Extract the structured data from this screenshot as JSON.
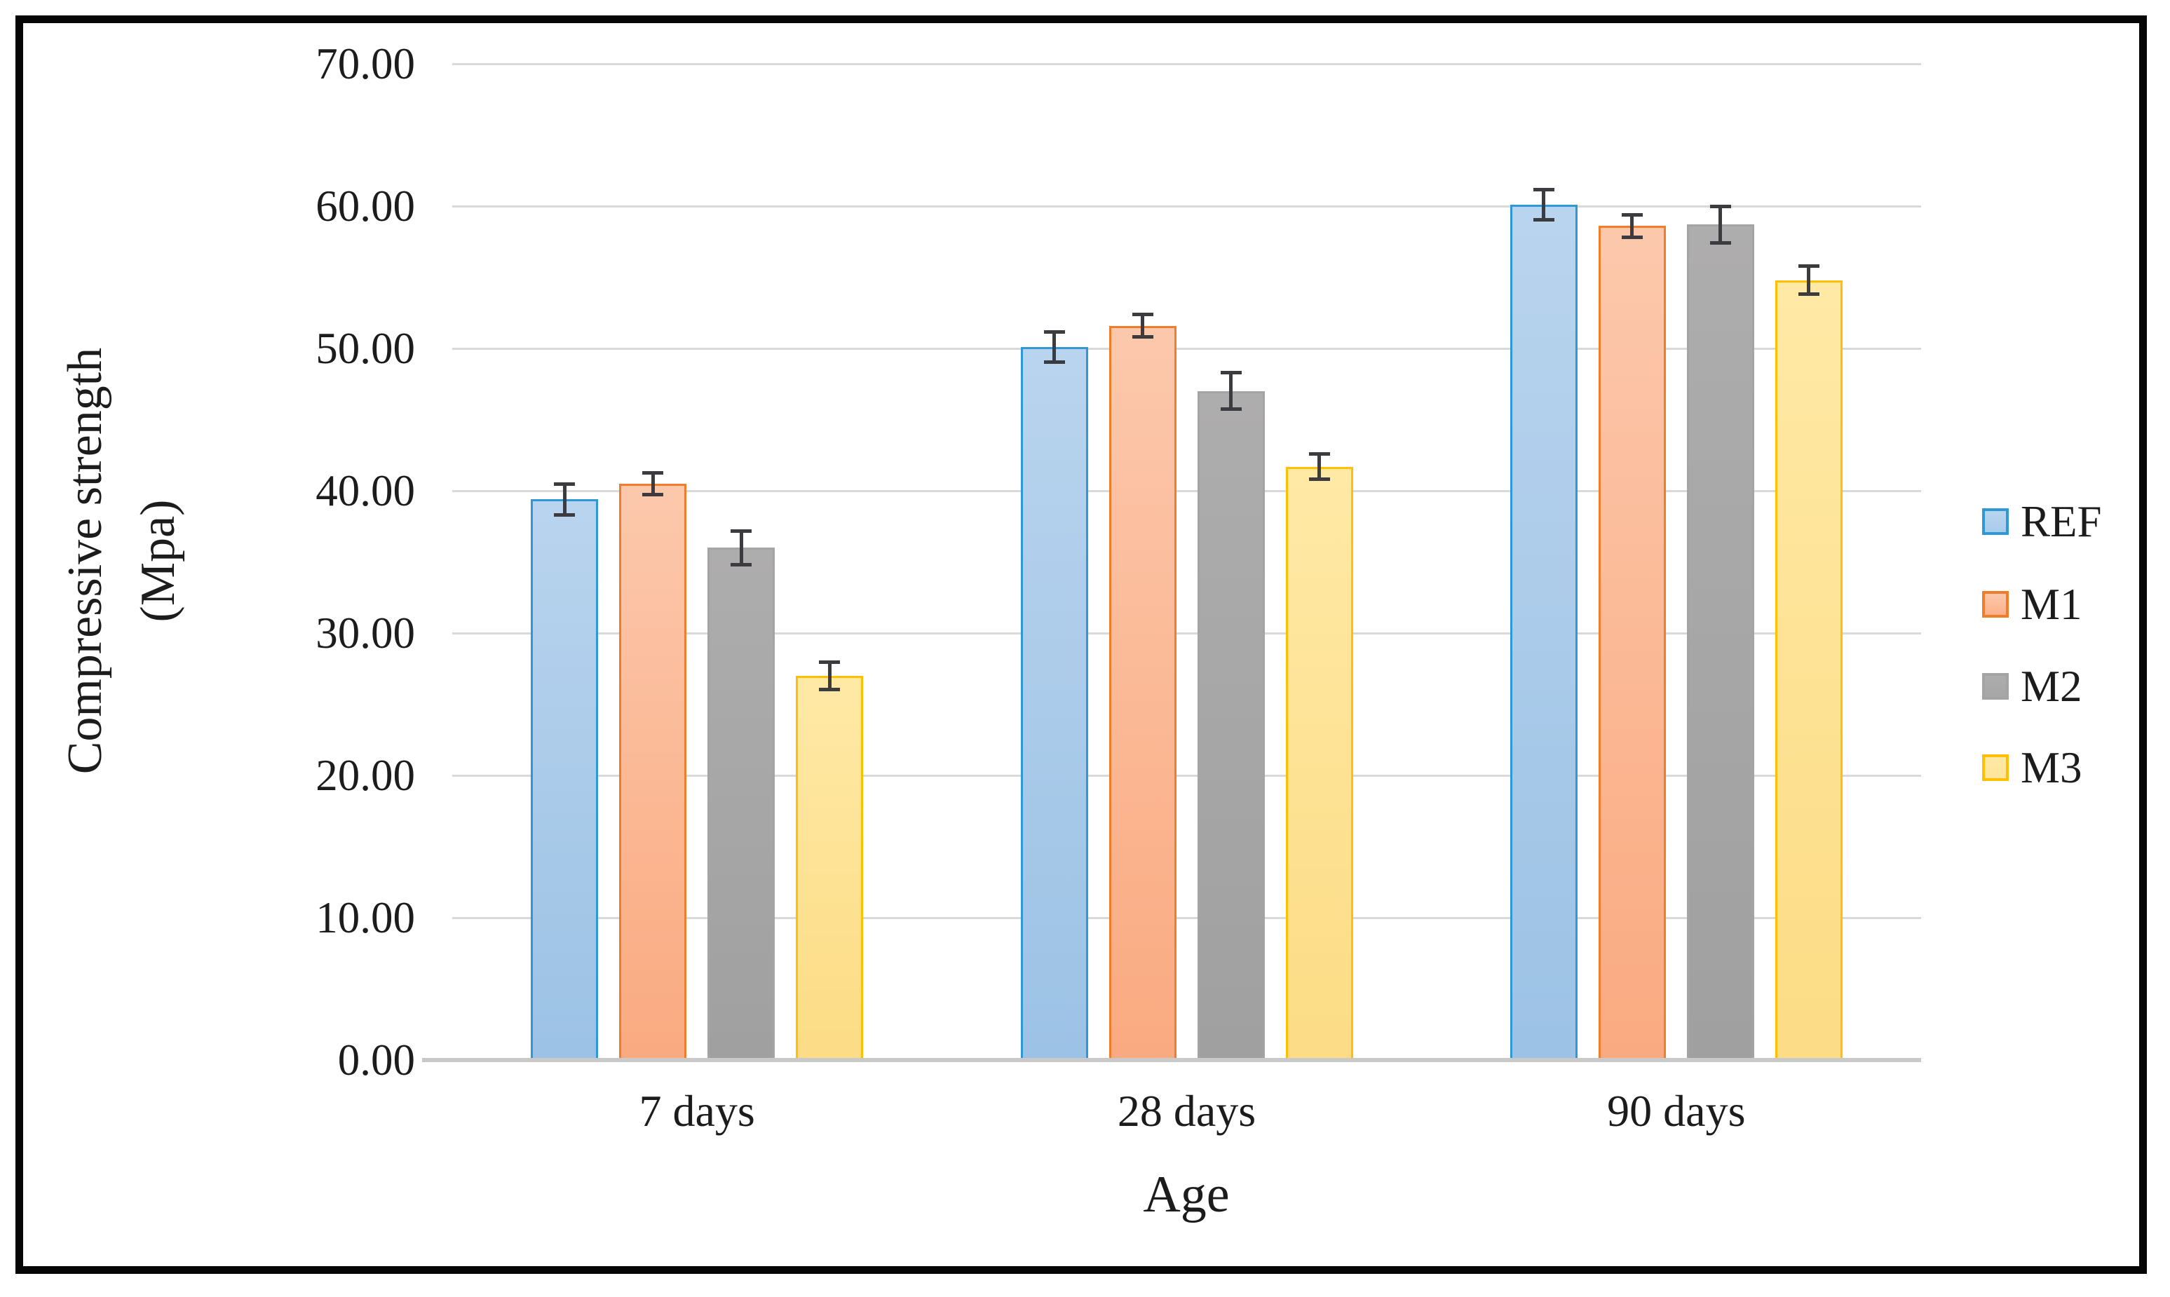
{
  "figure": {
    "y_axis": {
      "title_line1": "Compressive strength",
      "title_line2": "(Mpa)",
      "tick_labels": [
        "0.00",
        "10.00",
        "20.00",
        "30.00",
        "40.00",
        "50.00",
        "60.00",
        "70.00"
      ]
    },
    "x_axis": {
      "title": "Age",
      "categories": [
        "7 days",
        "28 days",
        "90 days"
      ]
    },
    "legend": {
      "position": "right",
      "items": [
        "REF",
        "M1",
        "M2",
        "M3"
      ]
    },
    "frame_color": "#060606",
    "background_color": "#ffffff"
  },
  "chart_data": {
    "type": "bar",
    "title": "",
    "xlabel": "Age",
    "ylabel": "Compressive strength (Mpa)",
    "categories": [
      "7 days",
      "28 days",
      "90 days"
    ],
    "series": [
      {
        "name": "REF",
        "values": [
          39.4,
          50.1,
          60.1
        ],
        "errors": [
          1.2,
          1.2,
          1.2
        ],
        "fill_top": "#b9d4ee",
        "fill_bottom": "#9cc2e5",
        "border": "#2f99d7",
        "legend_fill": "#a9ccec"
      },
      {
        "name": "M1",
        "values": [
          40.5,
          51.6,
          58.6
        ],
        "errors": [
          0.9,
          0.9,
          0.9
        ],
        "fill_top": "#fcc8ac",
        "fill_bottom": "#faaa80",
        "border": "#f07d2c",
        "legend_fill": "#fbb18a"
      },
      {
        "name": "M2",
        "values": [
          36.0,
          47.0,
          58.7
        ],
        "errors": [
          1.3,
          1.4,
          1.4
        ],
        "fill_top": "#aeadad",
        "fill_bottom": "#a0a0a0",
        "border": "#a5a4a4",
        "legend_fill": "#a7a6a6"
      },
      {
        "name": "M3",
        "values": [
          27.0,
          41.7,
          54.8
        ],
        "errors": [
          1.1,
          1.0,
          1.1
        ],
        "fill_top": "#ffe9a5",
        "fill_bottom": "#fcdc85",
        "border": "#ffc003",
        "legend_fill": "#ffe59a"
      }
    ],
    "ylim": [
      0,
      70
    ],
    "ytick_step": 10,
    "grid": "horizontal",
    "gridline_color": "#d9d9d9",
    "axis_line_color": "#c9c9c9",
    "error_bar_color": "#3c3c40",
    "legend_position": "right"
  }
}
